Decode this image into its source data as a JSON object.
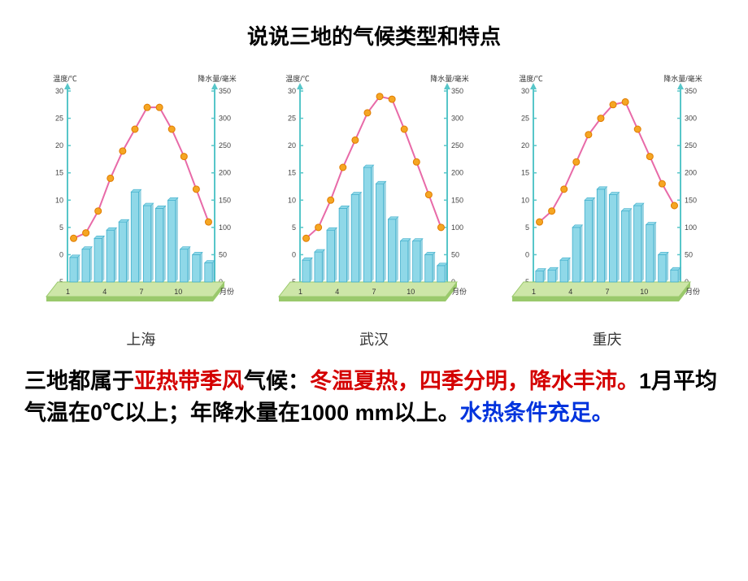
{
  "title": "说说三地的气候类型和特点",
  "axis_labels": {
    "temp_label": "温度/℃",
    "precip_label": "降水量/毫米",
    "month_label": "月份"
  },
  "axis": {
    "temp_ticks": [
      -5,
      0,
      5,
      10,
      15,
      20,
      25,
      30
    ],
    "temp_min": -5,
    "temp_max": 30,
    "precip_ticks": [
      0,
      50,
      100,
      150,
      200,
      250,
      300,
      350
    ],
    "precip_min": 0,
    "precip_max": 350,
    "month_ticks": [
      1,
      4,
      7,
      10
    ],
    "axis_label_fontsize": 9,
    "tick_fontsize": 9,
    "axis_color": "#57c6c9",
    "tick_color": "#444444"
  },
  "style": {
    "bar_fill": "#8fd8e8",
    "bar_stroke": "#3faecb",
    "line_color": "#e86aa8",
    "marker_fill": "#f5a623",
    "marker_stroke": "#e07b00",
    "base_fill": "#cde6a8",
    "base_side": "#9ac96c"
  },
  "cities": [
    {
      "name": "上海",
      "temp": [
        3,
        4,
        8,
        14,
        19,
        23,
        27,
        27,
        23,
        18,
        12,
        6
      ],
      "precip": [
        45,
        60,
        80,
        95,
        110,
        165,
        140,
        135,
        150,
        60,
        50,
        35
      ]
    },
    {
      "name": "武汉",
      "temp": [
        3,
        5,
        10,
        16,
        21,
        26,
        29,
        28.5,
        23,
        17,
        11,
        5
      ],
      "precip": [
        40,
        55,
        95,
        135,
        160,
        210,
        180,
        115,
        75,
        75,
        50,
        30
      ]
    },
    {
      "name": "重庆",
      "temp": [
        6,
        8,
        12,
        17,
        22,
        25,
        27.5,
        28,
        23,
        18,
        13,
        9
      ],
      "precip": [
        20,
        22,
        40,
        100,
        150,
        170,
        160,
        130,
        140,
        105,
        50,
        22
      ]
    }
  ],
  "conclusion": {
    "parts": [
      {
        "text": "三地都属于",
        "class": "txt-black"
      },
      {
        "text": "亚热带季风",
        "class": "txt-red"
      },
      {
        "text": "气候：",
        "class": "txt-black"
      },
      {
        "text": "冬温夏热，四季分明，降水丰沛。",
        "class": "txt-red"
      },
      {
        "text": "1月平均气温在0℃以上；年降水量在1000 mm以上。",
        "class": "txt-black"
      },
      {
        "text": "水热条件充足。",
        "class": "txt-blue"
      }
    ]
  }
}
